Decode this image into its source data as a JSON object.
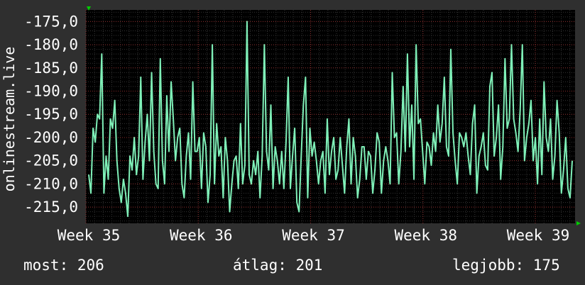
{
  "colors": {
    "background": "#2f2f2f",
    "plot_background": "#000000",
    "series": "#7ff0b8",
    "grid_major": "#8a2a2a",
    "grid_minor": "#333333",
    "axis_arrow": "#00cc00",
    "text": "#ffffff"
  },
  "chart_data": {
    "type": "line",
    "ylabel": "onlinestream.live",
    "ylim": [
      -218.5,
      -172.5
    ],
    "yticks": [
      "-175,0",
      "-180,0",
      "-185,0",
      "-190,0",
      "-195,0",
      "-200,0",
      "-205,0",
      "-210,0",
      "-215,0"
    ],
    "ytick_values": [
      -175,
      -180,
      -185,
      -190,
      -195,
      -200,
      -205,
      -210,
      -215
    ],
    "xlim": [
      0,
      28.3
    ],
    "xticks": [
      "Week 35",
      "Week 36",
      "Week 37",
      "Week 38",
      "Week 39"
    ],
    "xtick_values": [
      0,
      6.5,
      13,
      19.5,
      26
    ],
    "grid": true,
    "series": [
      {
        "values": [
          -208,
          -212,
          -198,
          -201,
          -195,
          -196,
          -182,
          -212,
          -204,
          -209,
          -196,
          -198,
          -192,
          -205,
          -211,
          -214,
          -209,
          -212,
          -217,
          -204,
          -207,
          -200,
          -208,
          -204,
          -187,
          -209,
          -201,
          -195,
          -205,
          -186,
          -203,
          -210,
          -211,
          -183,
          -205,
          -210,
          -191,
          -203,
          -188,
          -196,
          -205,
          -200,
          -198,
          -210,
          -213,
          -204,
          -199,
          -209,
          -188,
          -203,
          -203,
          -200,
          -211,
          -199,
          -202,
          -214,
          -208,
          -180,
          -210,
          -197,
          -204,
          -202,
          -213,
          -200,
          -205,
          -216,
          -210,
          -205,
          -204,
          -211,
          -197,
          -210,
          -206,
          -175,
          -208,
          -210,
          -205,
          -208,
          -203,
          -213,
          -204,
          -180,
          -203,
          -207,
          -193,
          -211,
          -202,
          -205,
          -210,
          -203,
          -211,
          -201,
          -187,
          -211,
          -204,
          -198,
          -214,
          -216,
          -204,
          -193,
          -187,
          -213,
          -198,
          -204,
          -201,
          -205,
          -210,
          -205,
          -203,
          -212,
          -196,
          -208,
          -203,
          -200,
          -209,
          -207,
          -200,
          -206,
          -212,
          -202,
          -196,
          -210,
          -200,
          -204,
          -213,
          -209,
          -202,
          -202,
          -209,
          -203,
          -204,
          -212,
          -207,
          -199,
          -201,
          -212,
          -205,
          -202,
          -205,
          -210,
          -186,
          -200,
          -199,
          -210,
          -203,
          -189,
          -203,
          -182,
          -202,
          -193,
          -209,
          -180,
          -197,
          -196,
          -203,
          -210,
          -201,
          -202,
          -206,
          -199,
          -203,
          -193,
          -201,
          -197,
          -187,
          -202,
          -204,
          -181,
          -199,
          -205,
          -210,
          -199,
          -200,
          -202,
          -199,
          -204,
          -208,
          -197,
          -193,
          -212,
          -204,
          -202,
          -199,
          -206,
          -207,
          -189,
          -186,
          -204,
          -200,
          -193,
          -209,
          -202,
          -183,
          -198,
          -196,
          -180,
          -196,
          -199,
          -203,
          -194,
          -180,
          -205,
          -200,
          -197,
          -192,
          -205,
          -200,
          -210,
          -196,
          -208,
          -188,
          -200,
          -203,
          -196,
          -209,
          -204,
          -192,
          -199,
          -212,
          -207,
          -200,
          -211,
          -213,
          -205
        ]
      }
    ]
  },
  "footer": {
    "now": "most: 206",
    "avg": "átlag: 201",
    "best": "legjobb: 175"
  }
}
